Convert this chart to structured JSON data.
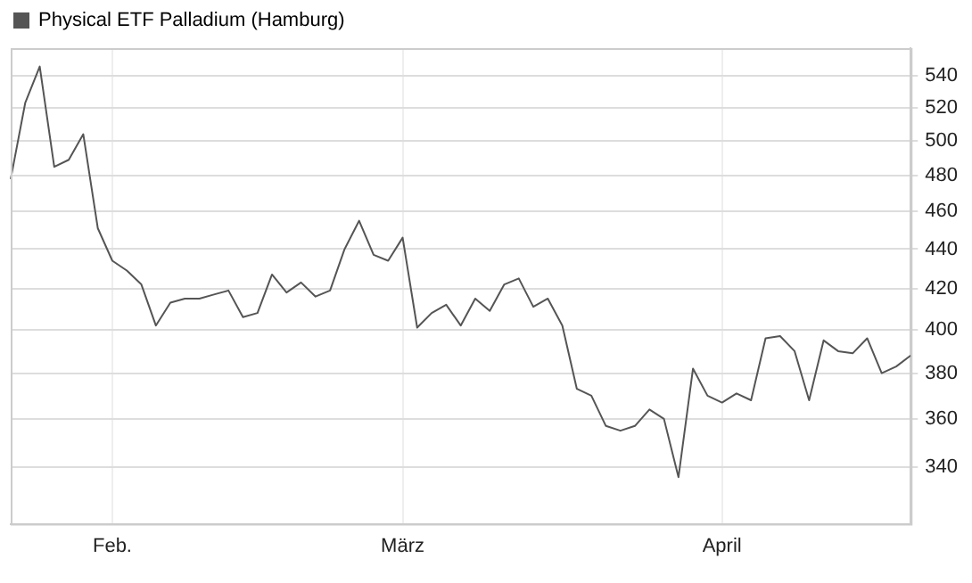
{
  "chart_data": {
    "type": "line",
    "categories": [
      null,
      null,
      null,
      null,
      null,
      null,
      null,
      "Feb.",
      null,
      null,
      null,
      null,
      null,
      null,
      null,
      null,
      null,
      null,
      null,
      null,
      null,
      null,
      null,
      null,
      null,
      null,
      null,
      "März",
      null,
      null,
      null,
      null,
      null,
      null,
      null,
      null,
      null,
      null,
      null,
      null,
      null,
      null,
      null,
      null,
      null,
      null,
      null,
      null,
      null,
      "April",
      null,
      null,
      null,
      null,
      null,
      null,
      null,
      null,
      null,
      null,
      null,
      null,
      null
    ],
    "series": [
      {
        "name": "Physical ETF Palladium (Hamburg)",
        "color": "#555555",
        "values": [
          478,
          523,
          546,
          485,
          489,
          504,
          451,
          434,
          429,
          422,
          402,
          413,
          415,
          415,
          417,
          419,
          406,
          408,
          427,
          418,
          423,
          416,
          419,
          440,
          455,
          437,
          434,
          446,
          401,
          408,
          412,
          402,
          415,
          409,
          422,
          425,
          411,
          415,
          402,
          373,
          370,
          357,
          355,
          357,
          364,
          360,
          336,
          382,
          370,
          367,
          371,
          368,
          396,
          397,
          390,
          368,
          395,
          390,
          389,
          396,
          380,
          383,
          388
        ]
      }
    ],
    "ylim": [
      318,
      558
    ],
    "yticks": [
      340,
      360,
      380,
      400,
      420,
      440,
      460,
      480,
      500,
      520,
      540
    ],
    "log": true,
    "grid": true,
    "legend": "top left",
    "marker": "none",
    "line_style": "solid"
  }
}
